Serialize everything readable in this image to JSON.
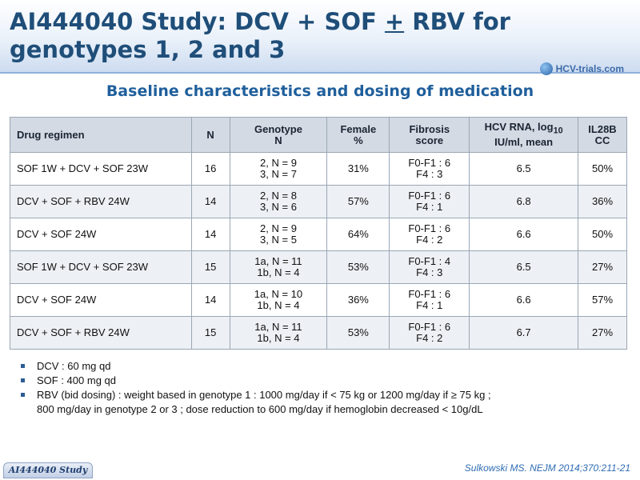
{
  "header": {
    "title_before": "AI444040 Study: DCV + SOF ",
    "title_plusminus": "+",
    "title_after": " RBV for genotypes 1, 2 and 3",
    "logo_text": "HCV-trials.com"
  },
  "subtitle": "Baseline characteristics and dosing of medication",
  "table": {
    "headers": {
      "regimen": "Drug regimen",
      "n": "N",
      "genotype_1": "Genotype",
      "genotype_2": "N",
      "female_1": "Female",
      "female_2": "%",
      "fibrosis_1": "Fibrosis",
      "fibrosis_2": "score",
      "rna_1": "HCV RNA, log",
      "rna_sub": "10",
      "rna_2": "IU/ml, mean",
      "il28b_1": "IL28B",
      "il28b_2": "CC"
    },
    "rows": [
      {
        "regimen": "SOF 1W + DCV + SOF 23W",
        "n": "16",
        "geno_1": "2, N = 9",
        "geno_2": "3, N = 7",
        "female": "31%",
        "fib_1": "F0-F1 : 6",
        "fib_2": "F4 : 3",
        "rna": "6.5",
        "il28b": "50%"
      },
      {
        "regimen": "DCV + SOF + RBV 24W",
        "n": "14",
        "geno_1": "2, N = 8",
        "geno_2": "3, N = 6",
        "female": "57%",
        "fib_1": "F0-F1 : 6",
        "fib_2": "F4 : 1",
        "rna": "6.8",
        "il28b": "36%"
      },
      {
        "regimen": "DCV + SOF 24W",
        "n": "14",
        "geno_1": "2, N = 9",
        "geno_2": "3, N = 5",
        "female": "64%",
        "fib_1": "F0-F1 : 6",
        "fib_2": "F4 : 2",
        "rna": "6.6",
        "il28b": "50%"
      },
      {
        "regimen": "SOF 1W + DCV + SOF 23W",
        "n": "15",
        "geno_1": "1a, N = 11",
        "geno_2": "1b, N = 4",
        "female": "53%",
        "fib_1": "F0-F1 : 4",
        "fib_2": "F4 : 3",
        "rna": "6.5",
        "il28b": "27%"
      },
      {
        "regimen": "DCV + SOF 24W",
        "n": "14",
        "geno_1": "1a, N = 10",
        "geno_2": "1b, N = 4",
        "female": "36%",
        "fib_1": "F0-F1 : 6",
        "fib_2": "F4 : 1",
        "rna": "6.6",
        "il28b": "57%"
      },
      {
        "regimen": "DCV + SOF + RBV 24W",
        "n": "15",
        "geno_1": "1a, N = 11",
        "geno_2": "1b, N = 4",
        "female": "53%",
        "fib_1": "F0-F1 : 6",
        "fib_2": "F4 : 2",
        "rna": "6.7",
        "il28b": "27%"
      }
    ]
  },
  "notes": {
    "dcv": "DCV : 60 mg qd",
    "sof": "SOF : 400 mg qd",
    "rbv_1": "RBV (bid dosing) : weight based in genotype 1 : 1000 mg/day if < 75 kg or 1200 mg/day if ≥ 75 kg ;",
    "rbv_2": "800 mg/day in genotype 2 or 3 ; dose reduction to 600 mg/day if hemoglobin decreased < 10g/dL"
  },
  "footer": {
    "badge": "AI444040 Study",
    "citation": "Sulkowski MS. NEJM 2014;370:211-21"
  }
}
